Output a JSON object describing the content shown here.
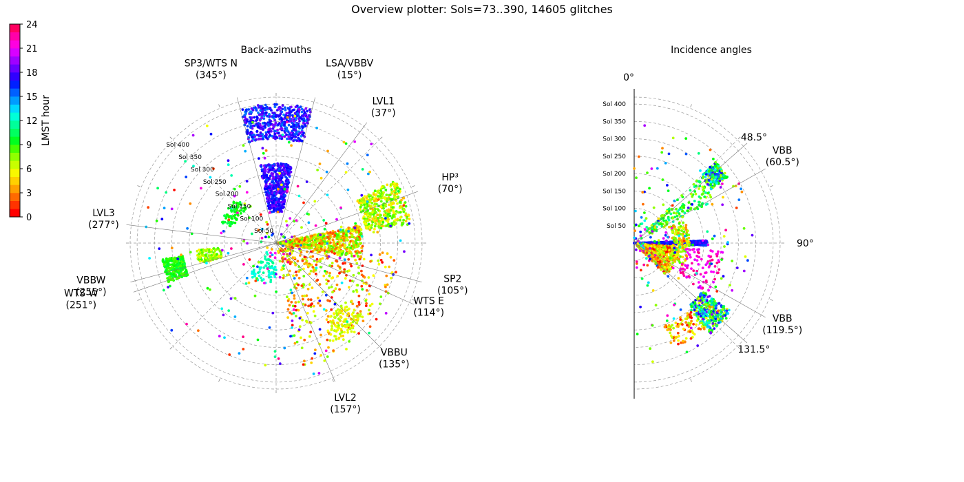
{
  "figure": {
    "title": "Overview plotter: Sols=73..390, 14605 glitches"
  },
  "colorbar": {
    "label": "LMST hour",
    "ticks": [
      "0",
      "3",
      "6",
      "9",
      "12",
      "15",
      "18",
      "21",
      "24"
    ],
    "band_colors": [
      "#ff0000",
      "#ff3300",
      "#ff6a00",
      "#ffa000",
      "#ffd000",
      "#f8f800",
      "#c8ff00",
      "#90ff00",
      "#48ff00",
      "#00ff20",
      "#00ff60",
      "#00ff9a",
      "#00ffd8",
      "#00d8ff",
      "#009cff",
      "#0060ff",
      "#0020ff",
      "#3000ff",
      "#6800ff",
      "#a000ff",
      "#d800ff",
      "#ff00e0",
      "#ff00a8",
      "#ff0060"
    ]
  },
  "chart_data": [
    {
      "type": "scatter",
      "projection": "polar",
      "title": "Back-azimuths",
      "theta_zero": "N",
      "theta_direction": "clockwise",
      "radial_axis": "Sol",
      "rlim": [
        0,
        420
      ],
      "grid": true,
      "radial_tick_labels": [
        "Sol 50",
        "Sol 100",
        "Sol 150",
        "Sol 200",
        "Sol 250",
        "Sol 300",
        "Sol 350",
        "Sol 400"
      ],
      "radial_tick_values": [
        50,
        100,
        150,
        200,
        250,
        300,
        350,
        400
      ],
      "color_variable": "LMST hour",
      "reference_directions": [
        {
          "name": "SP3/WTS N",
          "angle_label": "(345°)",
          "azimuth": 345
        },
        {
          "name": "LSA/VBBV",
          "angle_label": "(15°)",
          "azimuth": 15
        },
        {
          "name": "LVL1",
          "angle_label": "(37°)",
          "azimuth": 37
        },
        {
          "name": "HP³",
          "angle_label": "(70°)",
          "azimuth": 70
        },
        {
          "name": "SP2",
          "angle_label": "(105°)",
          "azimuth": 105
        },
        {
          "name": "WTS E",
          "angle_label": "(114°)",
          "azimuth": 114
        },
        {
          "name": "VBBU",
          "angle_label": "(135°)",
          "azimuth": 135
        },
        {
          "name": "LVL2",
          "angle_label": "(157°)",
          "azimuth": 157
        },
        {
          "name": "WTS W",
          "angle_label": "(251°)",
          "azimuth": 251
        },
        {
          "name": "VBBW",
          "angle_label": "(255°)",
          "azimuth": 255
        },
        {
          "name": "LVL3",
          "angle_label": "(277°)",
          "azimuth": 277
        }
      ],
      "clusters": [
        {
          "azimuth": [
            345,
            15
          ],
          "sol": [
            300,
            400
          ],
          "lmst": [
            15,
            20
          ],
          "count": 1100
        },
        {
          "azimuth": [
            348,
            12
          ],
          "sol": [
            90,
            230
          ],
          "lmst": [
            16,
            20
          ],
          "count": 1100
        },
        {
          "azimuth": [
            62,
            82
          ],
          "sol": [
            260,
            390
          ],
          "lmst": [
            3,
            8
          ],
          "count": 900
        },
        {
          "azimuth": [
            78,
            100
          ],
          "sol": [
            5,
            250
          ],
          "lmst": [
            1,
            8
          ],
          "count": 1500
        },
        {
          "azimuth": [
            95,
            170
          ],
          "sol": [
            20,
            370
          ],
          "lmst": [
            0,
            7
          ],
          "count": 800
        },
        {
          "azimuth": [
            130,
            150
          ],
          "sol": [
            260,
            330
          ],
          "lmst": [
            3,
            6
          ],
          "count": 250
        },
        {
          "azimuth": [
            180,
            220
          ],
          "sol": [
            50,
            120
          ],
          "lmst": [
            11,
            13
          ],
          "count": 150
        },
        {
          "azimuth": [
            250,
            262
          ],
          "sol": [
            270,
            330
          ],
          "lmst": [
            7,
            10
          ],
          "count": 500
        },
        {
          "azimuth": [
            255,
            265
          ],
          "sol": [
            160,
            230
          ],
          "lmst": [
            4,
            8
          ],
          "count": 250
        },
        {
          "azimuth": [
            290,
            320
          ],
          "sol": [
            130,
            170
          ],
          "lmst": [
            8,
            10
          ],
          "count": 150
        },
        {
          "azimuth": [
            0,
            360
          ],
          "sol": [
            20,
            400
          ],
          "lmst": [
            0,
            24
          ],
          "count": 600
        }
      ]
    },
    {
      "type": "scatter",
      "projection": "polar",
      "title": "Incidence angles",
      "theta_zero": "N",
      "theta_direction": "clockwise",
      "thetalim": [
        0,
        180
      ],
      "radial_axis": "Sol",
      "rlim": [
        0,
        420
      ],
      "grid": true,
      "angle_tick_labels": [
        "0°",
        "90°"
      ],
      "radial_tick_labels": [
        "Sol 50",
        "Sol 100",
        "Sol 150",
        "Sol 200",
        "Sol 250",
        "Sol 300",
        "Sol 350",
        "Sol 400"
      ],
      "radial_tick_values": [
        50,
        100,
        150,
        200,
        250,
        300,
        350,
        400
      ],
      "color_variable": "LMST hour",
      "reference_directions": [
        {
          "name": "",
          "angle_label": "48.5°",
          "incidence": 48.5
        },
        {
          "name": "VBB",
          "angle_label": "(60.5°)",
          "incidence": 60.5
        },
        {
          "name": "VBB",
          "angle_label": "(119.5°)",
          "incidence": 119.5
        },
        {
          "name": "",
          "angle_label": "131.5°",
          "incidence": 131.5
        }
      ],
      "clusters": [
        {
          "incidence": [
            88,
            92
          ],
          "sol": [
            0,
            130
          ],
          "lmst": [
            16,
            19
          ],
          "count": 700
        },
        {
          "incidence": [
            88,
            92
          ],
          "sol": [
            145,
            210
          ],
          "lmst": [
            16,
            19
          ],
          "count": 500
        },
        {
          "incidence": [
            45,
            55
          ],
          "sol": [
            270,
            330
          ],
          "lmst": [
            5,
            19
          ],
          "count": 450
        },
        {
          "incidence": [
            45,
            62
          ],
          "sol": [
            50,
            260
          ],
          "lmst": [
            5,
            12
          ],
          "count": 350
        },
        {
          "incidence": [
            95,
            135
          ],
          "sol": [
            10,
            130
          ],
          "lmst": [
            0,
            7
          ],
          "count": 1500
        },
        {
          "incidence": [
            125,
            140
          ],
          "sol": [
            240,
            340
          ],
          "lmst": [
            4,
            20
          ],
          "count": 700
        },
        {
          "incidence": [
            140,
            160
          ],
          "sol": [
            250,
            320
          ],
          "lmst": [
            0,
            6
          ],
          "count": 180
        },
        {
          "incidence": [
            65,
            115
          ],
          "sol": [
            110,
            160
          ],
          "lmst": [
            2,
            8
          ],
          "count": 350
        },
        {
          "incidence": [
            95,
            125
          ],
          "sol": [
            150,
            260
          ],
          "lmst": [
            21,
            24
          ],
          "count": 200
        },
        {
          "incidence": [
            0,
            180
          ],
          "sol": [
            10,
            350
          ],
          "lmst": [
            0,
            24
          ],
          "count": 400
        }
      ]
    }
  ]
}
